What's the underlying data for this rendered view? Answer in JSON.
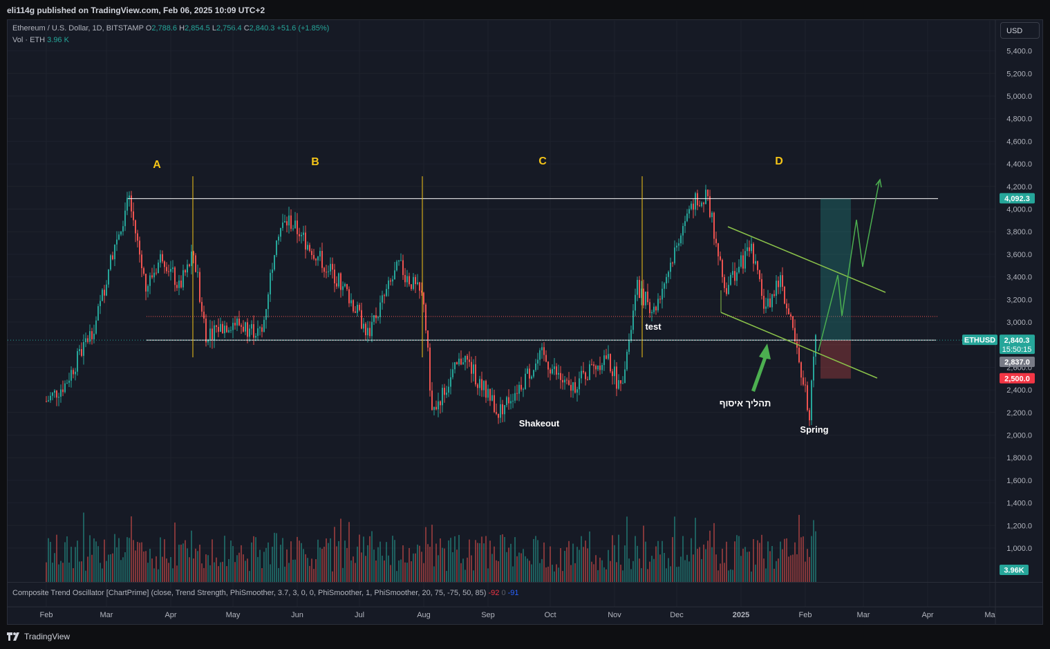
{
  "header": {
    "published": "eli114g published on TradingView.com, Feb 06, 2025 10:09 UTC+2"
  },
  "legend": {
    "symbol": "Ethereum / U.S. Dollar, 1D, BITSTAMP",
    "o_label": "O",
    "o": "2,788.6",
    "h_label": "H",
    "h": "2,854.5",
    "l_label": "L",
    "l": "2,756.4",
    "c_label": "C",
    "c": "2,840.3",
    "change": "+51.6 (+1.85%)",
    "vol_label": "Vol · ETH",
    "vol": "3.96 K"
  },
  "currency_button": "USD",
  "oscillator": {
    "label": "Composite Trend Oscillator [ChartPrime] (close, Trend Strength, PhiSmoother, 3.7, 3, 0, 0, PhiSmoother, 1, PhiSmoother, 20, 75, -75, 50, 85)",
    "v1": "-92",
    "v2": "0",
    "v3": "-91"
  },
  "price_labels": {
    "top_level": "4,092.3",
    "ticker": "ETHUSD",
    "current": "2,840.3",
    "countdown": "15:50:15",
    "crosshair": "2,837.0",
    "stop": "2,500.0",
    "volume": "3.96K"
  },
  "annotations": {
    "phase_a": "A",
    "phase_b": "B",
    "phase_c": "C",
    "phase_d": "D",
    "test": "test",
    "shakeout": "Shakeout",
    "spring": "Spring",
    "accumulation": "תהליך איסוף"
  },
  "footer": {
    "brand": "TradingView"
  },
  "colors": {
    "up": "#26a69a",
    "down": "#ef5350",
    "bg": "#161a25",
    "phase": "#f5c518",
    "channel": "#8bc34a"
  },
  "chart_data": {
    "type": "candlestick",
    "y_axis_ticks": [
      "5,400.0",
      "5,200.0",
      "5,000.0",
      "4,800.0",
      "4,600.0",
      "4,400.0",
      "4,200.0",
      "4,000.0",
      "3,800.0",
      "3,600.0",
      "3,400.0",
      "3,200.0",
      "3,000.0",
      "2,800.0",
      "2,600.0",
      "2,400.0",
      "2,200.0",
      "2,000.0",
      "1,800.0",
      "1,600.0",
      "1,400.0",
      "1,200.0",
      "1,000.0"
    ],
    "y_range": [
      900,
      5500
    ],
    "x_axis_ticks": [
      "Feb",
      "Mar",
      "Apr",
      "May",
      "Jun",
      "Jul",
      "Aug",
      "Sep",
      "Oct",
      "Nov",
      "Dec",
      "2025",
      "Feb",
      "Mar",
      "Apr",
      "Ma"
    ],
    "price_path": [
      [
        "2024-02-01",
        2300
      ],
      [
        "2024-02-10",
        2450
      ],
      [
        "2024-02-25",
        3000
      ],
      [
        "2024-03-05",
        3700
      ],
      [
        "2024-03-12",
        4092
      ],
      [
        "2024-03-20",
        3300
      ],
      [
        "2024-03-28",
        3600
      ],
      [
        "2024-04-05",
        3300
      ],
      [
        "2024-04-12",
        3600
      ],
      [
        "2024-04-18",
        2900
      ],
      [
        "2024-05-01",
        3000
      ],
      [
        "2024-05-15",
        2900
      ],
      [
        "2024-05-22",
        3800
      ],
      [
        "2024-05-28",
        3900
      ],
      [
        "2024-06-10",
        3600
      ],
      [
        "2024-06-24",
        3300
      ],
      [
        "2024-07-05",
        2900
      ],
      [
        "2024-07-20",
        3500
      ],
      [
        "2024-08-01",
        3200
      ],
      [
        "2024-08-05",
        2200
      ],
      [
        "2024-08-20",
        2700
      ],
      [
        "2024-09-06",
        2200
      ],
      [
        "2024-09-27",
        2700
      ],
      [
        "2024-10-10",
        2400
      ],
      [
        "2024-10-28",
        2700
      ],
      [
        "2024-11-04",
        2400
      ],
      [
        "2024-11-12",
        3300
      ],
      [
        "2024-11-20",
        3100
      ],
      [
        "2024-12-08",
        4050
      ],
      [
        "2024-12-16",
        4100
      ],
      [
        "2024-12-24",
        3300
      ],
      [
        "2025-01-06",
        3650
      ],
      [
        "2025-01-13",
        3100
      ],
      [
        "2025-01-20",
        3400
      ],
      [
        "2025-02-03",
        2200
      ],
      [
        "2025-02-06",
        2840
      ]
    ],
    "levels": {
      "range_high": 4092.3,
      "range_low": 2840,
      "dotted_mid": 3050,
      "stop": 2500
    },
    "phases": [
      "A",
      "B",
      "C",
      "D"
    ]
  }
}
